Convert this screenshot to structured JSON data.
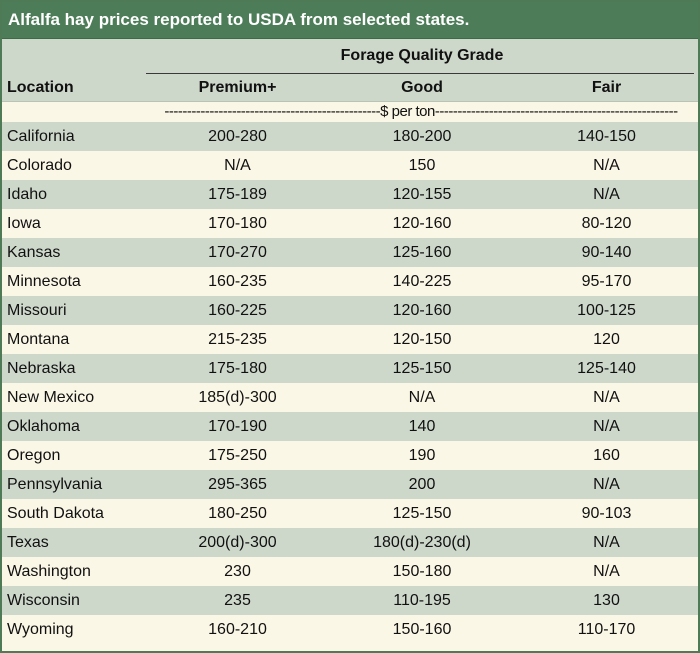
{
  "title": "Alfalfa hay prices reported to USDA from selected states.",
  "header": {
    "group_label": "Forage Quality Grade",
    "location": "Location",
    "columns": [
      "Premium+",
      "Good",
      "Fair"
    ],
    "units": "------------------------------------------------$ per ton------------------------------------------------------"
  },
  "rows": [
    {
      "location": "California",
      "premium": "200-280",
      "good": "180-200",
      "fair": "140-150"
    },
    {
      "location": "Colorado",
      "premium": "N/A",
      "good": "150",
      "fair": "N/A"
    },
    {
      "location": "Idaho",
      "premium": "175-189",
      "good": "120-155",
      "fair": "N/A"
    },
    {
      "location": "Iowa",
      "premium": "170-180",
      "good": "120-160",
      "fair": "80-120"
    },
    {
      "location": "Kansas",
      "premium": "170-270",
      "good": "125-160",
      "fair": "90-140"
    },
    {
      "location": "Minnesota",
      "premium": "160-235",
      "good": "140-225",
      "fair": "95-170"
    },
    {
      "location": "Missouri",
      "premium": "160-225",
      "good": "120-160",
      "fair": "100-125"
    },
    {
      "location": "Montana",
      "premium": "215-235",
      "good": "120-150",
      "fair": "120"
    },
    {
      "location": "Nebraska",
      "premium": "175-180",
      "good": "125-150",
      "fair": "125-140"
    },
    {
      "location": "New Mexico",
      "premium": "185(d)-300",
      "good": "N/A",
      "fair": "N/A"
    },
    {
      "location": "Oklahoma",
      "premium": "170-190",
      "good": "140",
      "fair": "N/A"
    },
    {
      "location": "Oregon",
      "premium": "175-250",
      "good": "190",
      "fair": "160"
    },
    {
      "location": "Pennsylvania",
      "premium": "295-365",
      "good": "200",
      "fair": "N/A"
    },
    {
      "location": "South Dakota",
      "premium": "180-250",
      "good": "125-150",
      "fair": "90-103"
    },
    {
      "location": "Texas",
      "premium": "200(d)-300",
      "good": "180(d)-230(d)",
      "fair": "N/A"
    },
    {
      "location": "Washington",
      "premium": "230",
      "good": "150-180",
      "fair": "N/A"
    },
    {
      "location": "Wisconsin",
      "premium": "235",
      "good": "110-195",
      "fair": "130"
    },
    {
      "location": "Wyoming",
      "premium": "160-210",
      "good": "150-160",
      "fair": "110-170"
    }
  ]
}
